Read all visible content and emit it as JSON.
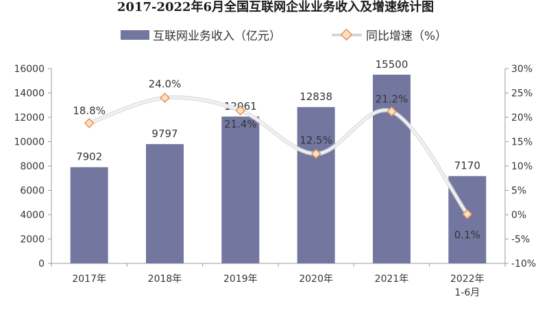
{
  "chart_data": {
    "type": "bar",
    "title": "2017-2022年6月全国互联网企业业务收入及增速统计图",
    "categories": [
      [
        "2017年"
      ],
      [
        "2018年"
      ],
      [
        "2019年"
      ],
      [
        "2020年"
      ],
      [
        "2021年"
      ],
      [
        "2022年",
        "1-6月"
      ]
    ],
    "series": [
      {
        "name": "互联网业务收入（亿元）",
        "type": "bar",
        "axis": "left",
        "values": [
          7902,
          9797,
          12061,
          12838,
          15500,
          7170
        ],
        "labels": [
          "7902",
          "9797",
          "12061",
          "12838",
          "15500",
          "7170"
        ]
      },
      {
        "name": "同比增速（%）",
        "type": "line",
        "axis": "right",
        "values": [
          18.8,
          24.0,
          21.4,
          12.5,
          21.2,
          0.1
        ],
        "labels": [
          "18.8%",
          "24.0%",
          "21.4%",
          "12.5%",
          "21.2%",
          "0.1%"
        ]
      }
    ],
    "ylim_left": [
      0,
      16000
    ],
    "yticks_left": [
      "0",
      "2000",
      "4000",
      "6000",
      "8000",
      "10000",
      "12000",
      "14000",
      "16000"
    ],
    "ylim_right": [
      -10,
      30
    ],
    "yticks_right": [
      "-10%",
      "-5%",
      "0%",
      "5%",
      "10%",
      "15%",
      "20%",
      "25%",
      "30%"
    ],
    "legend_position": "top",
    "grid": false,
    "colors": {
      "bar": "#7377a0",
      "line": "#e4e4e4",
      "marker_fill": "#fbe0c6",
      "marker_stroke": "#e0935a",
      "axis": "#999999"
    }
  }
}
